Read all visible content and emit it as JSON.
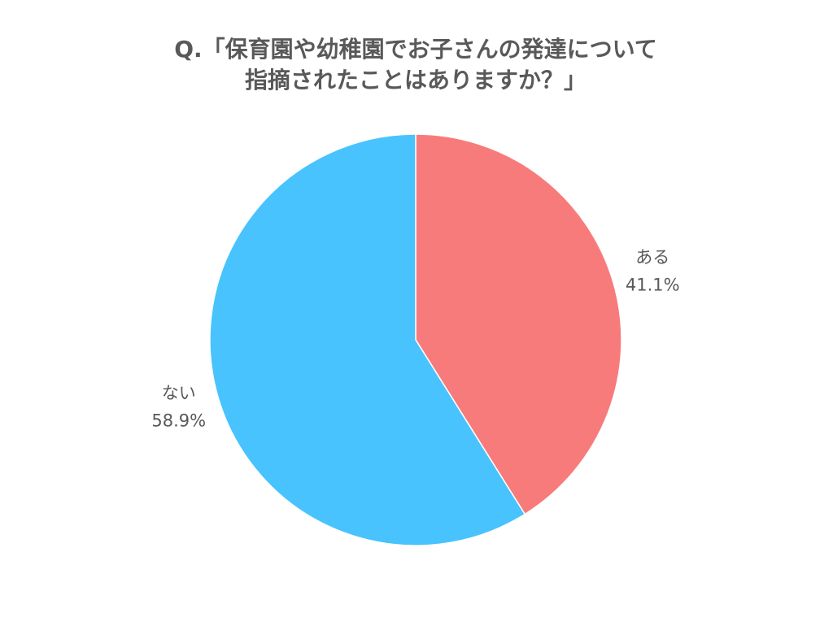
{
  "chart_data": {
    "type": "pie",
    "title": [
      "Q.「保育園や幼稚園でお子さんの発達について",
      "指摘されたことはありますか？」"
    ],
    "categories": [
      "ある",
      "ない"
    ],
    "values": [
      41.1,
      58.9
    ],
    "value_labels": [
      "41.1%",
      "58.9%"
    ],
    "colors": [
      "#f87b7b",
      "#48c3fd"
    ]
  }
}
